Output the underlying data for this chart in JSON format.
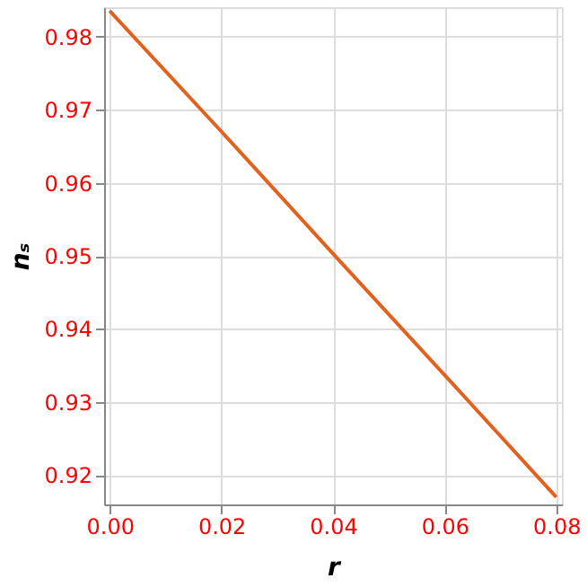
{
  "chart_data": {
    "type": "line",
    "xlabel": "r",
    "ylabel": "nₛ",
    "x": [
      0.0,
      0.02,
      0.04,
      0.06,
      0.08
    ],
    "series": [
      {
        "color": "#e1621f",
        "values": [
          0.9835,
          0.967,
          0.9503,
          0.9337,
          0.917
        ]
      }
    ],
    "xlim": [
      -0.001,
      0.081
    ],
    "ylim": [
      0.916,
      0.984
    ],
    "xticks": [
      {
        "value": 0,
        "label": "0.00"
      },
      {
        "value": 0.02,
        "label": "0.02"
      },
      {
        "value": 0.04,
        "label": "0.04"
      },
      {
        "value": 0.06,
        "label": "0.06"
      },
      {
        "value": 0.08,
        "label": "0.08"
      }
    ],
    "yticks": [
      0.92,
      0.93,
      0.94,
      0.95,
      0.96,
      0.97,
      0.98
    ],
    "grid": true,
    "marker": "none",
    "line_style": "solid"
  }
}
